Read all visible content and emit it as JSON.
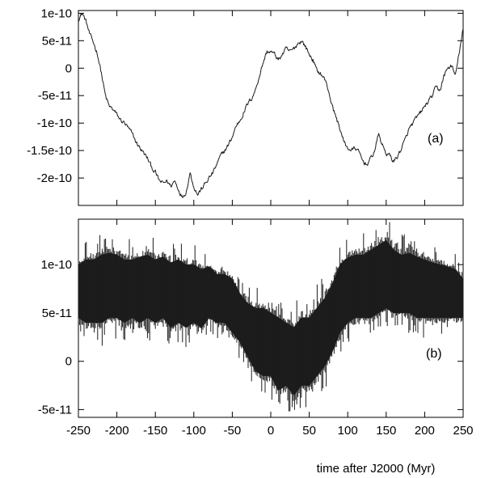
{
  "chart_data": [
    {
      "type": "line",
      "panel_label": "(a)",
      "xlim": [
        -250,
        250
      ],
      "ylim": [
        -2.5e-10,
        1.05e-10
      ],
      "xticks": [
        -250,
        -200,
        -150,
        -100,
        -50,
        0,
        50,
        100,
        150,
        200,
        250
      ],
      "yticks": [
        {
          "value": 1e-10,
          "label": "1e-10"
        },
        {
          "value": 5e-11,
          "label": "5e-11"
        },
        {
          "value": 0,
          "label": "0"
        },
        {
          "value": -5e-11,
          "label": "-5e-11"
        },
        {
          "value": -1e-10,
          "label": "-1e-10"
        },
        {
          "value": -1.5e-10,
          "label": "-1.5e-10"
        },
        {
          "value": -2e-10,
          "label": "-2e-10"
        }
      ],
      "x": [
        -250,
        -245,
        -240,
        -235,
        -230,
        -225,
        -220,
        -215,
        -210,
        -205,
        -200,
        -195,
        -190,
        -185,
        -180,
        -175,
        -170,
        -165,
        -160,
        -155,
        -150,
        -145,
        -140,
        -135,
        -130,
        -125,
        -120,
        -115,
        -110,
        -105,
        -100,
        -95,
        -90,
        -85,
        -80,
        -75,
        -70,
        -65,
        -60,
        -55,
        -50,
        -45,
        -40,
        -35,
        -30,
        -25,
        -20,
        -15,
        -10,
        -5,
        0,
        5,
        10,
        15,
        20,
        25,
        30,
        35,
        40,
        45,
        50,
        55,
        60,
        65,
        70,
        75,
        80,
        85,
        90,
        95,
        100,
        105,
        110,
        115,
        120,
        125,
        130,
        135,
        140,
        145,
        150,
        155,
        160,
        165,
        170,
        175,
        180,
        185,
        190,
        195,
        200,
        205,
        210,
        215,
        220,
        225,
        230,
        235,
        240,
        245,
        250
      ],
      "y": [
        9e-11,
        1e-10,
        8.5e-11,
        6e-11,
        4.5e-11,
        2.5e-11,
        -1e-11,
        -5e-11,
        -7e-11,
        -7.5e-11,
        -8.5e-11,
        -9.5e-11,
        -1e-10,
        -1.1e-10,
        -1.2e-10,
        -1.35e-10,
        -1.45e-10,
        -1.55e-10,
        -1.65e-10,
        -1.8e-10,
        -1.9e-10,
        -2.05e-10,
        -2.1e-10,
        -2.05e-10,
        -2.15e-10,
        -2.05e-10,
        -2.2e-10,
        -2.35e-10,
        -2.25e-10,
        -1.9e-10,
        -2.15e-10,
        -2.3e-10,
        -2.2e-10,
        -2.1e-10,
        -2e-10,
        -1.9e-10,
        -1.75e-10,
        -1.6e-10,
        -1.5e-10,
        -1.4e-10,
        -1.25e-10,
        -1.05e-10,
        -9.5e-11,
        -8e-11,
        -6.5e-11,
        -5.5e-11,
        -4e-11,
        -1.5e-11,
        1e-11,
        3e-11,
        3e-11,
        2.5e-11,
        1.5e-11,
        2.5e-11,
        3.5e-11,
        3e-11,
        3.5e-11,
        4.5e-11,
        5e-11,
        4e-11,
        2.5e-11,
        1.5e-11,
        -5e-12,
        -1e-11,
        -2e-11,
        -4e-11,
        -7e-11,
        -9e-11,
        -1.1e-10,
        -1.35e-10,
        -1.45e-10,
        -1.5e-10,
        -1.45e-10,
        -1.55e-10,
        -1.7e-10,
        -1.75e-10,
        -1.65e-10,
        -1.5e-10,
        -1.2e-10,
        -1.4e-10,
        -1.55e-10,
        -1.6e-10,
        -1.7e-10,
        -1.6e-10,
        -1.45e-10,
        -1.3e-10,
        -1.1e-10,
        -1e-10,
        -9e-11,
        -8e-11,
        -7e-11,
        -6e-11,
        -5e-11,
        -3.5e-11,
        -4e-11,
        -1.5e-11,
        0,
        5e-12,
        -1.5e-11,
        3e-11,
        7e-11
      ]
    },
    {
      "type": "area",
      "panel_label": "(b)",
      "xlim": [
        -250,
        250
      ],
      "ylim": [
        -5.8e-11,
        1.47e-10
      ],
      "xticks": [
        -250,
        -200,
        -150,
        -100,
        -50,
        0,
        50,
        100,
        150,
        200,
        250
      ],
      "xtick_labels": [
        "-250",
        "-200",
        "-150",
        "-100",
        "-50",
        "0",
        "50",
        "100",
        "150",
        "200",
        "250"
      ],
      "yticks": [
        {
          "value": 1e-10,
          "label": "1e-10"
        },
        {
          "value": 5e-11,
          "label": "5e-11"
        },
        {
          "value": 0,
          "label": "0"
        },
        {
          "value": -5e-11,
          "label": "-5e-11"
        }
      ],
      "xlabel": "time after J2000 (Myr)",
      "x": [
        -250,
        -240,
        -230,
        -220,
        -210,
        -200,
        -190,
        -180,
        -170,
        -160,
        -150,
        -140,
        -130,
        -120,
        -110,
        -100,
        -90,
        -80,
        -70,
        -60,
        -50,
        -40,
        -30,
        -20,
        -10,
        0,
        10,
        20,
        30,
        40,
        50,
        60,
        70,
        80,
        90,
        100,
        110,
        120,
        130,
        140,
        150,
        160,
        170,
        180,
        190,
        200,
        210,
        220,
        230,
        240,
        250
      ],
      "upper": [
        1e-10,
        1.05e-10,
        1.05e-10,
        1.1e-10,
        1.12e-10,
        1.1e-10,
        1.05e-10,
        1.05e-10,
        1.08e-10,
        1.1e-10,
        1.05e-10,
        1.08e-10,
        1.02e-10,
        1.05e-10,
        1e-10,
        1e-10,
        9.5e-11,
        9.8e-11,
        9e-11,
        9e-11,
        8.5e-11,
        7e-11,
        6e-11,
        5.5e-11,
        5.5e-11,
        5e-11,
        4.5e-11,
        4e-11,
        3.5e-11,
        4.5e-11,
        4.5e-11,
        5.5e-11,
        6.5e-11,
        8e-11,
        1e-10,
        1.07e-10,
        1.1e-10,
        1.1e-10,
        1.15e-10,
        1.2e-10,
        1.25e-10,
        1.15e-10,
        1.1e-10,
        1.12e-10,
        1.08e-10,
        1.05e-10,
        1.02e-10,
        1e-10,
        9.8e-11,
        9.5e-11,
        8.5e-11
      ],
      "lower": [
        4.5e-11,
        4e-11,
        4e-11,
        4e-11,
        4.5e-11,
        4.5e-11,
        4e-11,
        4.5e-11,
        4e-11,
        4.5e-11,
        4e-11,
        4.5e-11,
        3.5e-11,
        4e-11,
        3.5e-11,
        4e-11,
        3.5e-11,
        4.5e-11,
        4e-11,
        4e-11,
        3e-11,
        2e-11,
        5e-12,
        -1e-11,
        -1.5e-11,
        -1.5e-11,
        -3e-11,
        -2.5e-11,
        -3.5e-11,
        -2.5e-11,
        -2.5e-11,
        -1.5e-11,
        -5e-12,
        1e-11,
        3e-11,
        4e-11,
        4.5e-11,
        4.5e-11,
        4.5e-11,
        5e-11,
        5.5e-11,
        5e-11,
        5e-11,
        5e-11,
        4.5e-11,
        4.5e-11,
        4.5e-11,
        4.5e-11,
        4.5e-11,
        4.5e-11,
        4.5e-11
      ]
    }
  ]
}
